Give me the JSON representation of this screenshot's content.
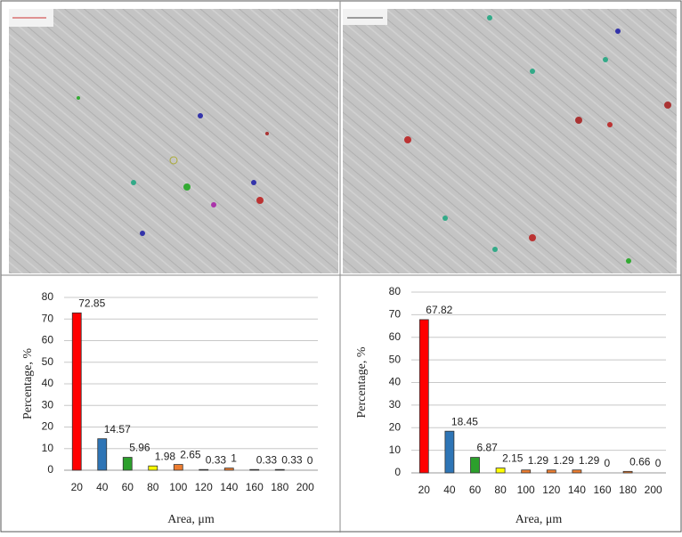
{
  "chart_data": [
    {
      "type": "bar",
      "y_label": "Percentage, %",
      "x_label": "Area, μm",
      "categories": [
        20,
        40,
        60,
        80,
        100,
        120,
        140,
        160,
        180,
        200
      ],
      "values": [
        72.85,
        14.57,
        5.96,
        1.98,
        2.65,
        0.33,
        1,
        0.33,
        0.33,
        0
      ],
      "colors": [
        "#ff0000",
        "#2e75b6",
        "#2ca02c",
        "#ffff00",
        "#ed7d31",
        "#ed7d31",
        "#ed7d31",
        "#ed7d31",
        "#ed7d31",
        "#ed7d31"
      ],
      "ylim": [
        0,
        80
      ],
      "yticks": [
        0,
        10,
        20,
        30,
        40,
        50,
        60,
        70,
        80
      ],
      "grid": true
    },
    {
      "type": "bar",
      "y_label": "Percentage, %",
      "x_label": "Area, μm",
      "categories": [
        20,
        40,
        60,
        80,
        100,
        120,
        140,
        160,
        180,
        200
      ],
      "values": [
        67.82,
        18.45,
        6.87,
        2.15,
        1.29,
        1.29,
        1.29,
        0,
        0.66,
        0
      ],
      "colors": [
        "#ff0000",
        "#2e75b6",
        "#2ca02c",
        "#ffff00",
        "#ed7d31",
        "#ed7d31",
        "#ed7d31",
        "#ed7d31",
        "#ed7d31",
        "#ed7d31"
      ],
      "ylim": [
        0,
        80
      ],
      "yticks": [
        0,
        10,
        20,
        30,
        40,
        50,
        60,
        70,
        80
      ],
      "grid": true
    }
  ]
}
